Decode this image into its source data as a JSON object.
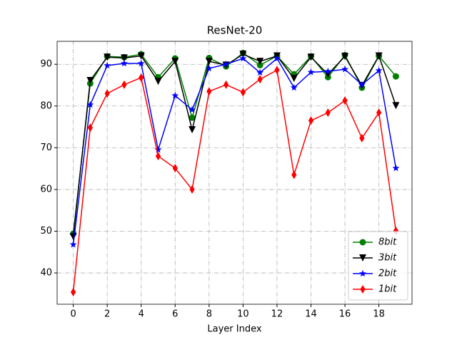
{
  "chart_data": {
    "type": "line",
    "title": "ResNet-20",
    "x_label": "Layer Index",
    "x": [
      0,
      1,
      2,
      3,
      4,
      5,
      6,
      7,
      8,
      9,
      10,
      11,
      12,
      13,
      14,
      15,
      16,
      17,
      18,
      19
    ],
    "xlim": [
      -0.95,
      19.95
    ],
    "xticks": [
      0,
      2,
      4,
      6,
      8,
      10,
      12,
      14,
      16,
      18
    ],
    "ylim": [
      32.5,
      95.5
    ],
    "yticks": [
      40,
      50,
      60,
      70,
      80,
      90
    ],
    "grid": true,
    "legend": "lower right",
    "series": [
      {
        "name": "8bit",
        "color": "#008000",
        "marker": "circle",
        "values": [
          49.4,
          85.4,
          91.9,
          91.7,
          92.4,
          86.9,
          91.4,
          77.2,
          91.5,
          89.5,
          92.7,
          89.8,
          92.0,
          87.6,
          91.9,
          86.9,
          92.2,
          84.4,
          92.0,
          87.1
        ]
      },
      {
        "name": "3bit",
        "color": "#000000",
        "marker": "triangle-down",
        "values": [
          48.7,
          86.1,
          91.7,
          91.5,
          92.0,
          85.9,
          90.7,
          74.3,
          90.7,
          89.8,
          92.4,
          90.7,
          92.0,
          86.6,
          91.7,
          87.6,
          91.9,
          84.9,
          92.0,
          80.1
        ]
      },
      {
        "name": "2bit",
        "color": "#0000ff",
        "marker": "star",
        "values": [
          46.8,
          80.3,
          89.7,
          90.2,
          90.2,
          69.5,
          82.5,
          79.1,
          89.0,
          90.0,
          91.4,
          88.0,
          91.4,
          84.4,
          88.1,
          88.3,
          88.8,
          85.1,
          88.5,
          65.1
        ]
      },
      {
        "name": "1bit",
        "color": "#ff0000",
        "marker": "thin-diamond",
        "values": [
          35.4,
          74.8,
          83.0,
          85.1,
          86.8,
          68.0,
          65.1,
          60.0,
          83.5,
          85.1,
          83.3,
          86.4,
          88.6,
          63.5,
          76.5,
          78.4,
          81.3,
          72.3,
          78.4,
          50.1
        ]
      }
    ]
  }
}
